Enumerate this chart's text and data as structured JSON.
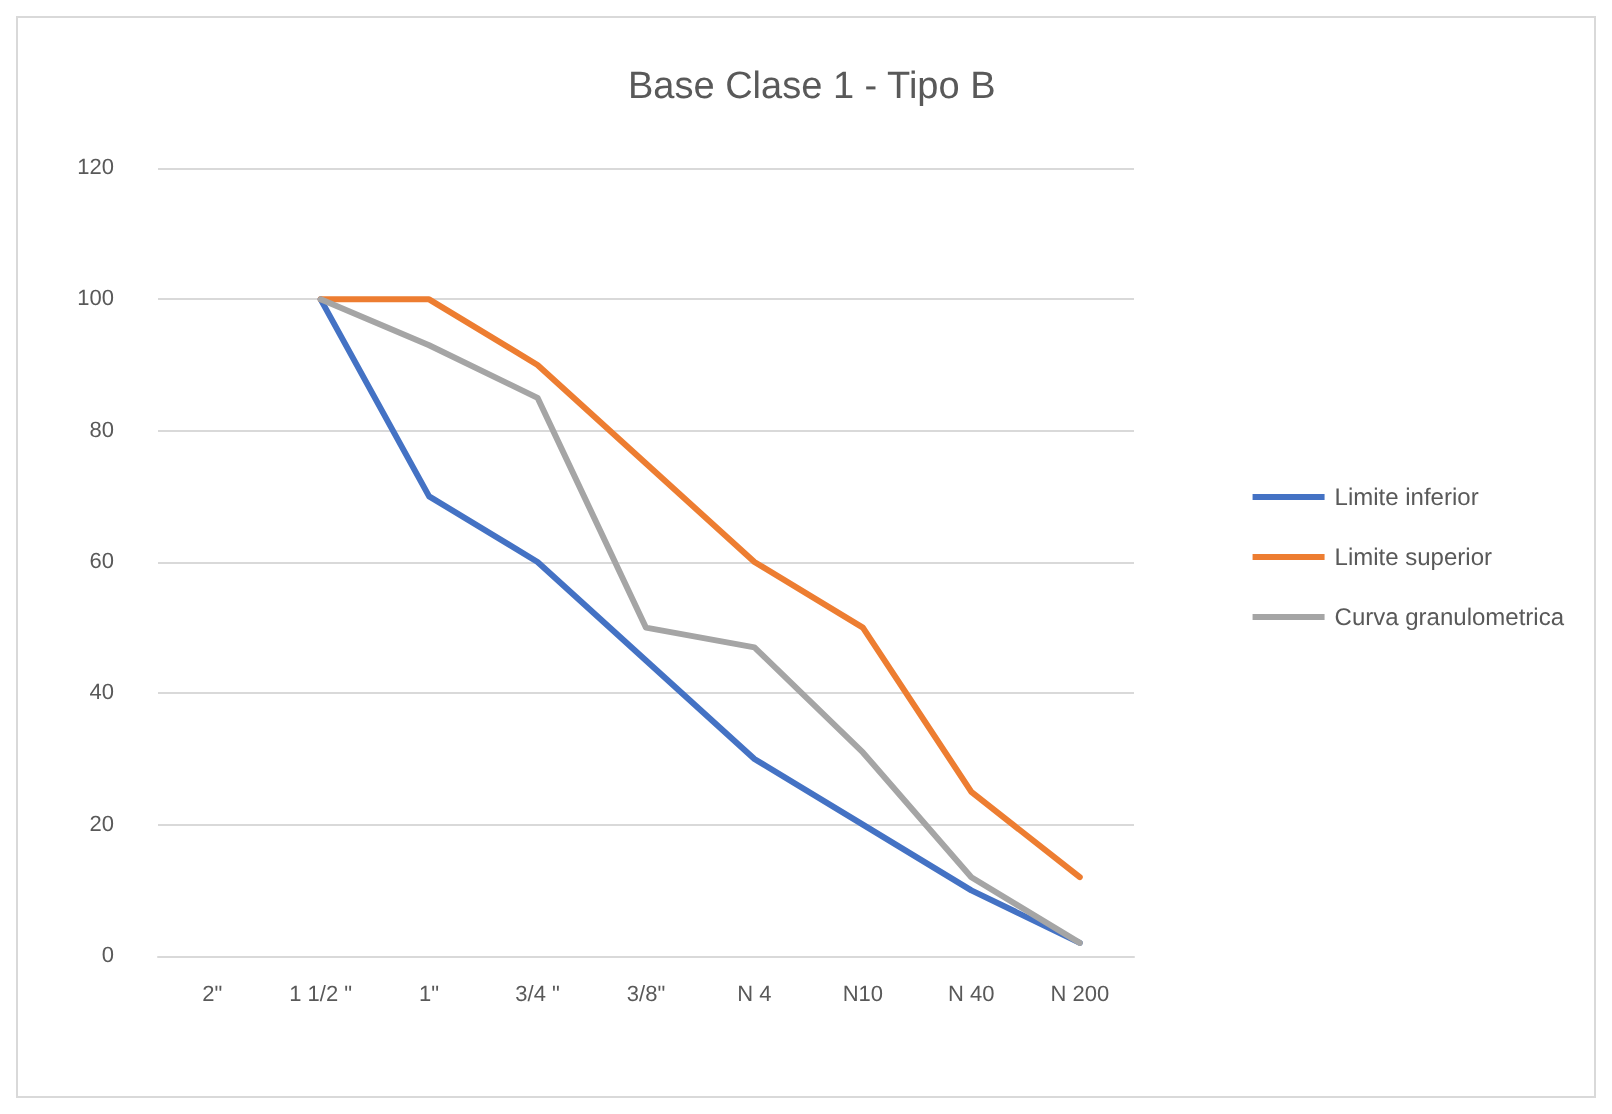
{
  "chart_data": {
    "type": "line",
    "title": "Base Clase 1 - Tipo B",
    "categories": [
      "2\"",
      "1 1/2 \"",
      "1\"",
      "3/4 \"",
      "3/8\"",
      "N 4",
      "N10",
      "N 40",
      "N 200"
    ],
    "series": [
      {
        "name": "Limite inferior",
        "color": "#4472c4",
        "values": [
          null,
          100,
          70,
          60,
          45,
          30,
          20,
          10,
          2
        ]
      },
      {
        "name": "Limite superior",
        "color": "#ed7d31",
        "values": [
          null,
          100,
          100,
          90,
          75,
          60,
          50,
          25,
          12
        ]
      },
      {
        "name": "Curva granulometrica",
        "color": "#a5a5a5",
        "values": [
          null,
          100,
          93,
          85,
          50,
          47,
          31,
          12,
          2
        ]
      }
    ],
    "ylim": [
      0,
      120
    ],
    "yticks": [
      0,
      20,
      40,
      60,
      80,
      100,
      120
    ],
    "grid": "y",
    "legend": "right",
    "marker": "none",
    "line_style": "solid"
  }
}
